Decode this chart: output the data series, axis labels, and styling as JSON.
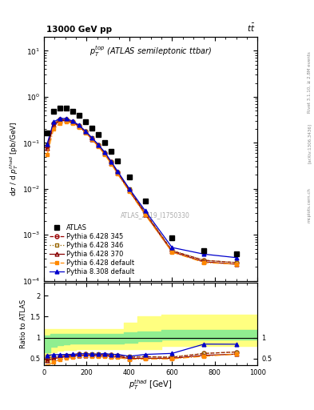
{
  "title_top": "13000 GeV pp",
  "title_right": "t$\\bar{t}$",
  "inner_title": "$p_T^{top}$ (ATLAS semileptonic ttbar)",
  "watermark": "ATLAS_2019_I1750330",
  "right_label1": "Rivet 3.1.10, ≥ 2.8M events",
  "right_label2": "[arXiv:1306.3436]",
  "right_label3": "mcplots.cern.ch",
  "xlabel": "$p_T^{thad}$ [GeV]",
  "ylabel": "d$\\sigma$ / d $p_T^{thad}$ [pb/GeV]",
  "ratio_ylabel": "Ratio to ATLAS",
  "xlim": [
    0,
    1000
  ],
  "ylim_log": [
    0.0001,
    20
  ],
  "ylim_ratio": [
    0.35,
    2.3
  ],
  "atlas_x": [
    15,
    45,
    75,
    105,
    135,
    165,
    195,
    225,
    255,
    285,
    315,
    345,
    400,
    475,
    600,
    750,
    900
  ],
  "atlas_y": [
    0.165,
    0.48,
    0.57,
    0.56,
    0.49,
    0.39,
    0.29,
    0.21,
    0.15,
    0.1,
    0.065,
    0.04,
    0.018,
    0.0055,
    0.00085,
    0.00045,
    0.00038
  ],
  "py6_345_x": [
    15,
    45,
    75,
    105,
    135,
    165,
    195,
    225,
    255,
    285,
    315,
    345,
    400,
    475,
    600,
    750,
    900
  ],
  "py6_345_y": [
    0.083,
    0.26,
    0.32,
    0.32,
    0.285,
    0.235,
    0.175,
    0.125,
    0.09,
    0.06,
    0.038,
    0.023,
    0.0095,
    0.003,
    0.00045,
    0.00028,
    0.00025
  ],
  "py6_346_x": [
    15,
    45,
    75,
    105,
    135,
    165,
    195,
    225,
    255,
    285,
    315,
    345,
    400,
    475,
    600,
    750,
    900
  ],
  "py6_346_y": [
    0.09,
    0.27,
    0.32,
    0.32,
    0.285,
    0.235,
    0.175,
    0.127,
    0.091,
    0.06,
    0.038,
    0.023,
    0.0098,
    0.003,
    0.00046,
    0.00028,
    0.00025
  ],
  "py6_370_x": [
    15,
    45,
    75,
    105,
    135,
    165,
    195,
    225,
    255,
    285,
    315,
    345,
    400,
    475,
    600,
    750,
    900
  ],
  "py6_370_y": [
    0.075,
    0.24,
    0.3,
    0.305,
    0.275,
    0.225,
    0.168,
    0.12,
    0.085,
    0.057,
    0.036,
    0.022,
    0.009,
    0.0028,
    0.00043,
    0.00026,
    0.00023
  ],
  "py6_def_x": [
    15,
    45,
    75,
    105,
    135,
    165,
    195,
    225,
    255,
    285,
    315,
    345,
    400,
    475,
    600,
    750,
    900
  ],
  "py6_def_y": [
    0.055,
    0.2,
    0.27,
    0.285,
    0.265,
    0.22,
    0.165,
    0.118,
    0.083,
    0.055,
    0.035,
    0.021,
    0.0087,
    0.0027,
    0.00042,
    0.00025,
    0.00023
  ],
  "py8_def_x": [
    15,
    45,
    75,
    105,
    135,
    165,
    195,
    225,
    255,
    285,
    315,
    345,
    400,
    475,
    600,
    750,
    900
  ],
  "py8_def_y": [
    0.095,
    0.285,
    0.34,
    0.335,
    0.295,
    0.24,
    0.178,
    0.128,
    0.091,
    0.062,
    0.039,
    0.024,
    0.01,
    0.0033,
    0.00053,
    0.00038,
    0.00032
  ],
  "yb_x_edges": [
    0,
    30,
    60,
    90,
    120,
    150,
    180,
    210,
    240,
    270,
    300,
    330,
    375,
    437,
    550,
    650,
    800,
    1000
  ],
  "yb_lo": [
    0.42,
    0.65,
    0.68,
    0.7,
    0.71,
    0.72,
    0.72,
    0.72,
    0.72,
    0.72,
    0.72,
    0.72,
    0.72,
    0.72,
    0.8,
    0.8,
    0.8,
    0.8
  ],
  "yb_hi": [
    1.2,
    1.2,
    1.2,
    1.2,
    1.2,
    1.2,
    1.2,
    1.2,
    1.2,
    1.2,
    1.2,
    1.2,
    1.35,
    1.5,
    1.55,
    1.55,
    1.55,
    1.55
  ],
  "gb_x_edges": [
    0,
    30,
    60,
    90,
    120,
    150,
    180,
    210,
    240,
    270,
    300,
    330,
    375,
    437,
    550,
    650,
    800,
    1000
  ],
  "gb_lo": [
    0.65,
    0.78,
    0.82,
    0.84,
    0.85,
    0.86,
    0.86,
    0.86,
    0.86,
    0.86,
    0.86,
    0.86,
    0.88,
    0.92,
    0.95,
    0.95,
    0.95,
    0.95
  ],
  "gb_hi": [
    1.05,
    1.08,
    1.09,
    1.09,
    1.09,
    1.09,
    1.09,
    1.09,
    1.09,
    1.09,
    1.09,
    1.09,
    1.12,
    1.15,
    1.18,
    1.18,
    1.18,
    1.18
  ],
  "colors": {
    "atlas": "#000000",
    "py6_345": "#990000",
    "py6_346": "#996600",
    "py6_370": "#880000",
    "py6_def": "#FF8800",
    "py8_def": "#0000CC"
  }
}
